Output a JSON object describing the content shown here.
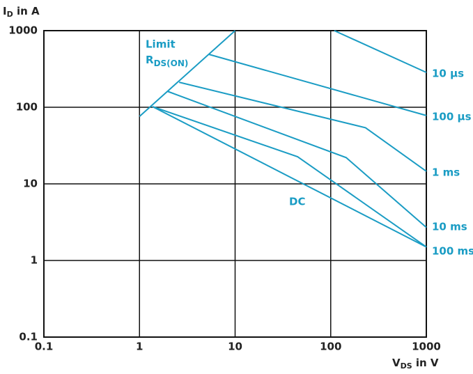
{
  "chart_data": {
    "type": "line",
    "y_label": [
      "I",
      "D",
      " in A"
    ],
    "x_label": [
      "V",
      "DS",
      " in V"
    ],
    "log_x": true,
    "log_y": true,
    "grid": true,
    "xlim": [
      0.1,
      1000
    ],
    "ylim": [
      0.1,
      1000
    ],
    "xticks": [
      0.1,
      1,
      10,
      100,
      1000
    ],
    "yticks": [
      0.1,
      1,
      10,
      100,
      1000
    ],
    "limit_label": [
      "Limit",
      "R",
      "DS(ON)"
    ],
    "series": [
      {
        "name": "Limit",
        "color": "#1a9cc4",
        "x": [
          1,
          10
        ],
        "values": [
          76,
          1000
        ]
      },
      {
        "name": "10 µs",
        "color": "#1a9cc4",
        "x": [
          109,
          1000
        ],
        "values": [
          1000,
          285
        ]
      },
      {
        "name": "100 µs",
        "color": "#1a9cc4",
        "x": [
          5.3,
          1000
        ],
        "values": [
          491,
          78
        ]
      },
      {
        "name": "1 ms",
        "color": "#1a9cc4",
        "x": [
          2.6,
          231,
          1000
        ],
        "values": [
          212,
          54,
          14.6
        ]
      },
      {
        "name": "10 ms",
        "color": "#1a9cc4",
        "x": [
          1.95,
          145,
          1000
        ],
        "values": [
          162,
          22,
          2.7
        ]
      },
      {
        "name": "100 ms",
        "color": "#1a9cc4",
        "x": [
          1.37,
          45,
          1000
        ],
        "values": [
          102,
          22.6,
          1.5
        ]
      },
      {
        "name": "DC",
        "color": "#1a9cc4",
        "x": [
          1.37,
          1000
        ],
        "values": [
          102,
          1.5
        ]
      }
    ]
  }
}
